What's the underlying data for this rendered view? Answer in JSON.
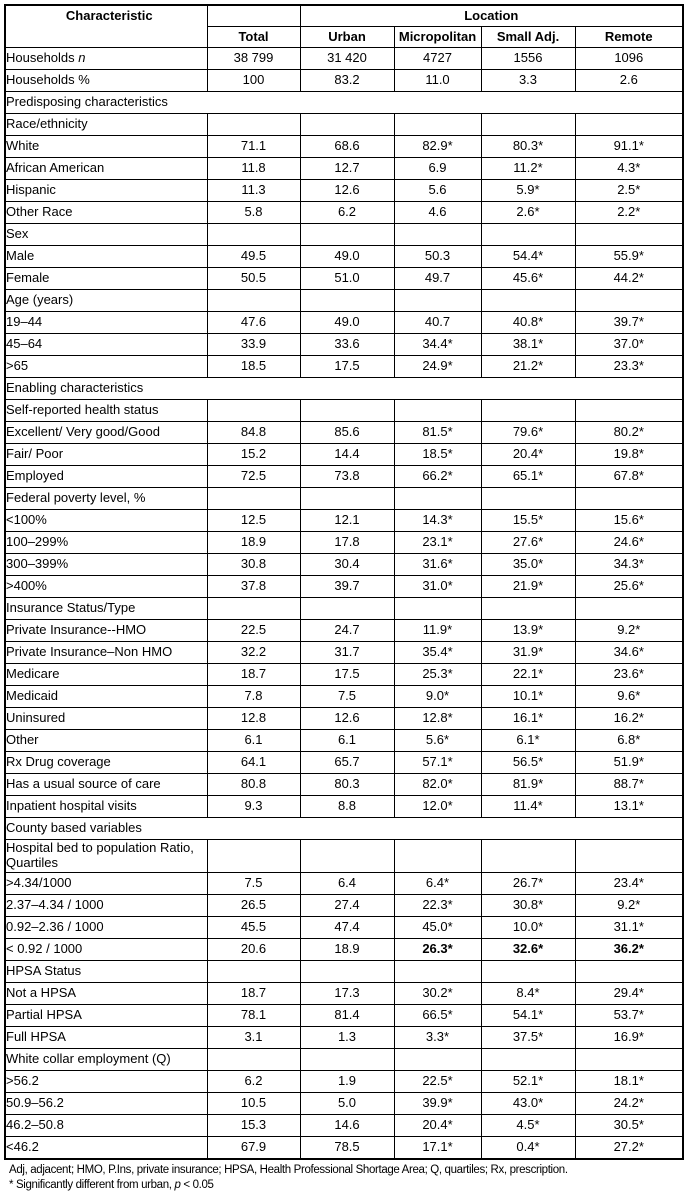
{
  "table": {
    "header": {
      "characteristic": "Characteristic",
      "location": "Location",
      "columns": [
        "Total",
        "Urban",
        "Micropolitan",
        "Small Adj.",
        "Remote"
      ]
    },
    "rows": [
      {
        "type": "item",
        "indent": 0,
        "label": "Households ",
        "label_italic": "n",
        "values": [
          "38 799",
          "31 420",
          "4727",
          "1556",
          "1096"
        ]
      },
      {
        "type": "item",
        "indent": 0,
        "label": "Households %",
        "values": [
          "100",
          "83.2",
          "11.0",
          "3.3",
          "2.6"
        ]
      },
      {
        "type": "section",
        "label": "Predisposing characteristics"
      },
      {
        "type": "group",
        "indent": 2,
        "label": "Race/ethnicity"
      },
      {
        "type": "item",
        "indent": 2,
        "label": "White",
        "values": [
          "71.1",
          "68.6",
          "82.9*",
          "80.3*",
          "91.1*"
        ]
      },
      {
        "type": "item",
        "indent": 2,
        "label": "African American",
        "values": [
          "11.8",
          "12.7",
          "6.9",
          "11.2*",
          "4.3*"
        ]
      },
      {
        "type": "item",
        "indent": 2,
        "label": "Hispanic",
        "values": [
          "11.3",
          "12.6",
          "5.6",
          "5.9*",
          "2.5*"
        ]
      },
      {
        "type": "item",
        "indent": 2,
        "label": "Other Race",
        "values": [
          "5.8",
          "6.2",
          "4.6",
          "2.6*",
          "2.2*"
        ]
      },
      {
        "type": "group",
        "indent": 1,
        "label": "Sex"
      },
      {
        "type": "item",
        "indent": 2,
        "label": "Male",
        "values": [
          "49.5",
          "49.0",
          "50.3",
          "54.4*",
          "55.9*"
        ]
      },
      {
        "type": "item",
        "indent": 2,
        "label": "Female",
        "values": [
          "50.5",
          "51.0",
          "49.7",
          "45.6*",
          "44.2*"
        ]
      },
      {
        "type": "group",
        "indent": 1,
        "label": "Age (years)"
      },
      {
        "type": "item",
        "indent": 2,
        "label": "19–44",
        "values": [
          "47.6",
          "49.0",
          "40.7",
          "40.8*",
          "39.7*"
        ]
      },
      {
        "type": "item",
        "indent": 2,
        "label": "45–64",
        "values": [
          "33.9",
          "33.6",
          "34.4*",
          "38.1*",
          "37.0*"
        ]
      },
      {
        "type": "item",
        "indent": 2,
        "label": ">65",
        "values": [
          "18.5",
          "17.5",
          "24.9*",
          "21.2*",
          "23.3*"
        ]
      },
      {
        "type": "section",
        "label": "Enabling characteristics"
      },
      {
        "type": "group",
        "indent": 0,
        "label": "Self-reported health status"
      },
      {
        "type": "item",
        "indent": 2,
        "label": "Excellent/ Very good/Good",
        "values": [
          "84.8",
          "85.6",
          "81.5*",
          "79.6*",
          "80.2*"
        ]
      },
      {
        "type": "item",
        "indent": 2,
        "label": "Fair/ Poor",
        "values": [
          "15.2",
          "14.4",
          "18.5*",
          "20.4*",
          "19.8*"
        ]
      },
      {
        "type": "item",
        "indent": 0,
        "label": "Employed",
        "values": [
          "72.5",
          "73.8",
          "66.2*",
          "65.1*",
          "67.8*"
        ]
      },
      {
        "type": "group",
        "indent": 0,
        "label": "Federal poverty level, %"
      },
      {
        "type": "item",
        "indent": 2,
        "label": "<100%",
        "values": [
          "12.5",
          "12.1",
          "14.3*",
          "15.5*",
          "15.6*"
        ]
      },
      {
        "type": "item",
        "indent": 2,
        "label": "100–299%",
        "values": [
          "18.9",
          "17.8",
          "23.1*",
          "27.6*",
          "24.6*"
        ]
      },
      {
        "type": "item",
        "indent": 2,
        "label": "300–399%",
        "values": [
          "30.8",
          "30.4",
          "31.6*",
          "35.0*",
          "34.3*"
        ]
      },
      {
        "type": "item",
        "indent": 2,
        "label": ">400%",
        "values": [
          "37.8",
          "39.7",
          "31.0*",
          "21.9*",
          "25.6*"
        ]
      },
      {
        "type": "group",
        "indent": 0,
        "label": "Insurance Status/Type"
      },
      {
        "type": "item",
        "indent": 2,
        "label": "Private Insurance--HMO",
        "values": [
          "22.5",
          "24.7",
          "11.9*",
          "13.9*",
          "9.2*"
        ]
      },
      {
        "type": "item",
        "indent": 2,
        "label": "Private Insurance–Non HMO",
        "values": [
          "32.2",
          "31.7",
          "35.4*",
          "31.9*",
          "34.6*"
        ]
      },
      {
        "type": "item",
        "indent": 2,
        "label": "Medicare",
        "values": [
          "18.7",
          "17.5",
          "25.3*",
          "22.1*",
          "23.6*"
        ]
      },
      {
        "type": "item",
        "indent": 2,
        "label": "Medicaid",
        "values": [
          "7.8",
          "7.5",
          "9.0*",
          "10.1*",
          "9.6*"
        ]
      },
      {
        "type": "item",
        "indent": 2,
        "label": "Uninsured",
        "values": [
          "12.8",
          "12.6",
          "12.8*",
          "16.1*",
          "16.2*"
        ]
      },
      {
        "type": "item",
        "indent": 2,
        "label": "Other",
        "values": [
          "6.1",
          "6.1",
          "5.6*",
          "6.1*",
          "6.8*"
        ]
      },
      {
        "type": "item",
        "indent": 0,
        "label": "Rx Drug coverage",
        "values": [
          "64.1",
          "65.7",
          "57.1*",
          "56.5*",
          "51.9*"
        ]
      },
      {
        "type": "item",
        "indent": 0,
        "label": "Has a usual source of care",
        "values": [
          "80.8",
          "80.3",
          "82.0*",
          "81.9*",
          "88.7*"
        ]
      },
      {
        "type": "item",
        "indent": 0,
        "label": "Inpatient hospital visits",
        "values": [
          "9.3",
          "8.8",
          "12.0*",
          "11.4*",
          "13.1*"
        ]
      },
      {
        "type": "section",
        "label": "County based variables"
      },
      {
        "type": "group",
        "indent": 0,
        "label": "Hospital bed to population Ratio, Quartiles"
      },
      {
        "type": "item",
        "indent": 3,
        "label": ">4.34/1000",
        "values": [
          "7.5",
          "6.4",
          "6.4*",
          "26.7*",
          "23.4*"
        ]
      },
      {
        "type": "item",
        "indent": 3,
        "label": "2.37–4.34 / 1000",
        "values": [
          "26.5",
          "27.4",
          "22.3*",
          "30.8*",
          "9.2*"
        ]
      },
      {
        "type": "item",
        "indent": 3,
        "label": "0.92–2.36 / 1000",
        "values": [
          "45.5",
          "47.4",
          "45.0*",
          "10.0*",
          "31.1*"
        ]
      },
      {
        "type": "item",
        "indent": 3,
        "label": "< 0.92 / 1000",
        "values": [
          "20.6",
          "18.9",
          "26.3*",
          "32.6*",
          "36.2*"
        ],
        "bold": [
          2,
          3,
          4
        ]
      },
      {
        "type": "group",
        "indent": 2,
        "label": "HPSA Status"
      },
      {
        "type": "item",
        "indent": 3,
        "label": "Not a HPSA",
        "values": [
          "18.7",
          "17.3",
          "30.2*",
          "8.4*",
          "29.4*"
        ]
      },
      {
        "type": "item",
        "indent": 3,
        "label": "Partial HPSA",
        "values": [
          "78.1",
          "81.4",
          "66.5*",
          "54.1*",
          "53.7*"
        ]
      },
      {
        "type": "item",
        "indent": 3,
        "label": "Full HPSA",
        "values": [
          "3.1",
          "1.3",
          "3.3*",
          "37.5*",
          "16.9*"
        ]
      },
      {
        "type": "group",
        "indent": 2,
        "label": "White collar employment (Q)"
      },
      {
        "type": "item",
        "indent": 3,
        "label": ">56.2",
        "values": [
          "6.2",
          "1.9",
          "22.5*",
          "52.1*",
          "18.1*"
        ]
      },
      {
        "type": "item",
        "indent": 3,
        "label": "50.9–56.2",
        "values": [
          "10.5",
          "5.0",
          "39.9*",
          "43.0*",
          "24.2*"
        ]
      },
      {
        "type": "item",
        "indent": 3,
        "label": "46.2–50.8",
        "values": [
          "15.3",
          "14.6",
          "20.4*",
          "4.5*",
          "30.5*"
        ]
      },
      {
        "type": "item",
        "indent": 3,
        "label": "<46.2",
        "values": [
          "67.9",
          "78.5",
          "17.1*",
          "0.4*",
          "27.2*"
        ]
      }
    ],
    "footnotes": {
      "line1": "Adj, adjacent; HMO, P.Ins, private insurance; HPSA, Health Professional Shortage Area; Q, quartiles; Rx, prescription.",
      "line2_prefix": "* Significantly different from urban, ",
      "line2_italic": "p",
      "line2_suffix": " < 0.05"
    }
  }
}
